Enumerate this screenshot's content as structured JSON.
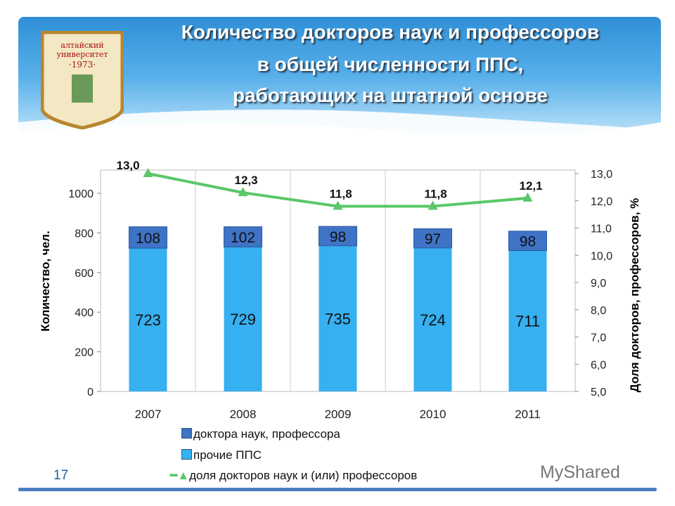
{
  "title": [
    "Количество докторов наук и профессоров",
    "в общей численности ППС,",
    "работающих на штатной основе"
  ],
  "logo": {
    "line1": "алтайский",
    "line2": "университет",
    "year": "·1973·"
  },
  "page_number": "17",
  "watermark": "MyShared",
  "colors": {
    "doctors": "#3f73c6",
    "others": "#36b0f0",
    "share": "#5ac76a"
  },
  "chart_data": {
    "type": "bar",
    "categories": [
      "2007",
      "2008",
      "2009",
      "2010",
      "2011"
    ],
    "series": [
      {
        "name": "доктора наук, профессора",
        "values": [
          108,
          102,
          98,
          97,
          98
        ],
        "axis": "left"
      },
      {
        "name": "прочие ППС",
        "values": [
          723,
          729,
          735,
          724,
          711
        ],
        "axis": "left"
      },
      {
        "name": "доля докторов наук и (или) профессоров",
        "values": [
          13.0,
          12.3,
          11.8,
          11.8,
          12.1
        ],
        "labels": [
          "13,0",
          "12,3",
          "11,8",
          "11,8",
          "12,1"
        ],
        "axis": "right",
        "type": "line"
      }
    ],
    "ylabel": "Количество, чел.",
    "ylim": [
      0,
      1000
    ],
    "yticks": [
      "0",
      "200",
      "400",
      "600",
      "800",
      "1000"
    ],
    "y2label": "Доля докторов, профессоров, %",
    "y2lim": [
      5,
      13
    ],
    "y2ticks": [
      "5,0",
      "6,0",
      "7,0",
      "8,0",
      "9,0",
      "10,0",
      "11,0",
      "12,0",
      "13,0"
    ],
    "stacked": true,
    "grid": true,
    "legend": "bottom"
  }
}
